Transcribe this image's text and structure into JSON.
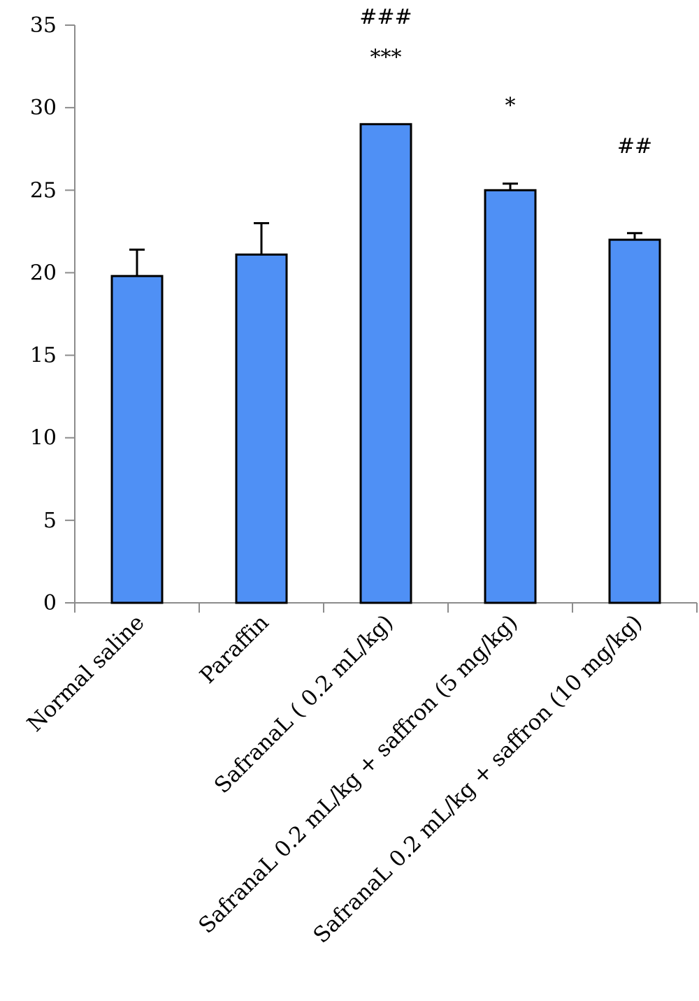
{
  "chart_data": {
    "type": "bar",
    "categories": [
      "Normal saline",
      "Paraffin",
      "SafranaL ( 0.2 mL/kg)",
      "SafranaL 0.2 mL/kg + saffron (5 mg/kg)",
      "SafranaL 0.2 mL/kg + saffron (10 mg/kg)"
    ],
    "values": [
      19.8,
      21.1,
      29.0,
      25.0,
      22.0
    ],
    "errors": [
      1.6,
      1.9,
      0.0,
      0.4,
      0.4
    ],
    "annotations": [
      [],
      [],
      [
        "###",
        "***"
      ],
      [
        "*"
      ],
      [
        "##"
      ]
    ],
    "ylim": [
      0,
      35
    ],
    "yticks": [
      0,
      5,
      10,
      15,
      20,
      25,
      30,
      35
    ],
    "title": "",
    "xlabel": "",
    "ylabel": "",
    "grid": false,
    "bar_color": "#4f90f5",
    "bar_edge_color": "#000000"
  }
}
